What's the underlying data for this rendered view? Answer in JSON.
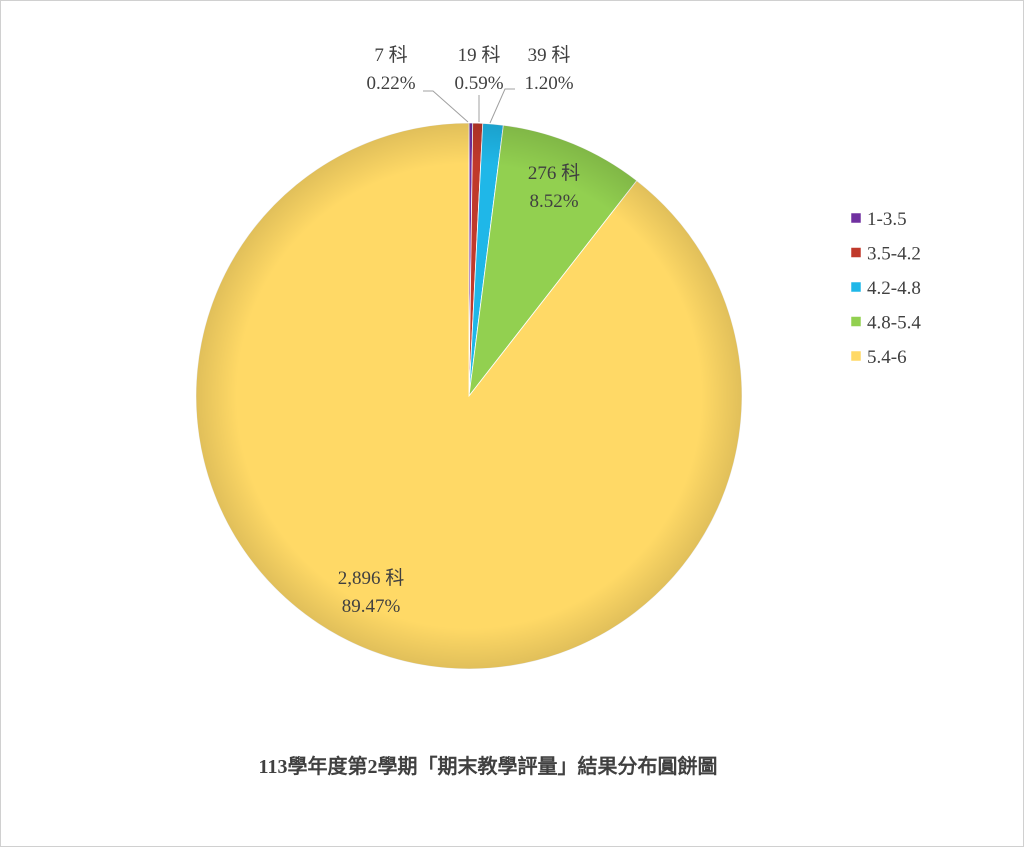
{
  "chart_data": {
    "type": "pie",
    "title": "113學年度第2學期「期末教學評量」結果分布圓餅圖",
    "categories": [
      "1-3.5",
      "3.5-4.2",
      "4.2-4.8",
      "4.8-5.4",
      "5.4-6"
    ],
    "values": [
      7,
      19,
      39,
      276,
      2896
    ],
    "data_labels": [
      {
        "count": "7 科",
        "percent": "0.22%"
      },
      {
        "count": "19 科",
        "percent": "0.59%"
      },
      {
        "count": "39 科",
        "percent": "1.20%"
      },
      {
        "count": "276 科",
        "percent": "8.52%"
      },
      {
        "count": "2,896 科",
        "percent": "89.47%"
      }
    ],
    "colors": [
      "#7030a0",
      "#c0392b",
      "#1fb7e8",
      "#92d050",
      "#ffd966"
    ],
    "start_angle": "12 o'clock",
    "direction": "clockwise",
    "legend_position": "right"
  }
}
